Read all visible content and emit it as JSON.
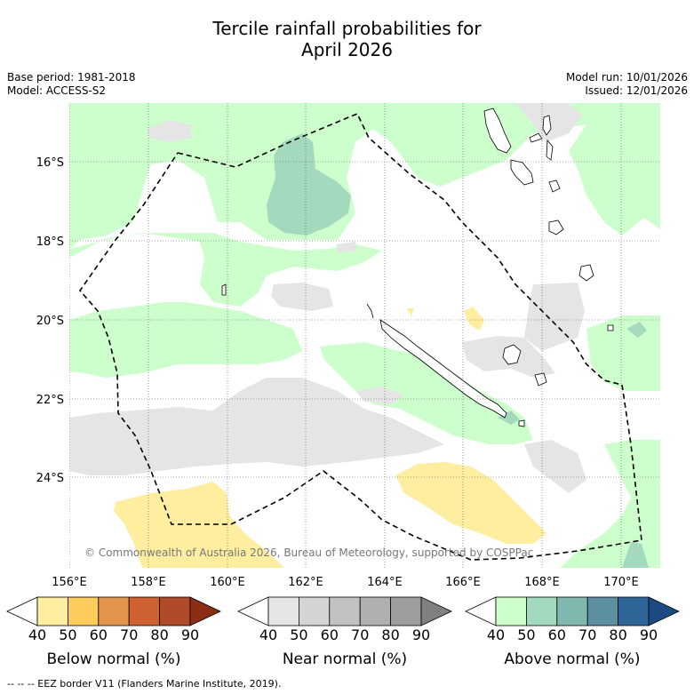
{
  "title_line1": "Tercile rainfall probabilities for",
  "title_line2": "April 2026",
  "base_period": "Base period: 1981-2018",
  "model": "Model: ACCESS-S2",
  "model_run": "Model run: 10/01/2026",
  "issued": "Issued: 12/01/2026",
  "copyright": "© Commonwealth of Australia 2026, Bureau of Meteorology, supported by COSPPac",
  "footnote": "--  --  -- EEZ border V11 (Flanders Marine Institute, 2019).",
  "lat_ticks": [
    "16°S",
    "18°S",
    "20°S",
    "22°S",
    "24°S"
  ],
  "lon_ticks": [
    "156°E",
    "158°E",
    "160°E",
    "162°E",
    "164°E",
    "166°E",
    "168°E",
    "170°E"
  ],
  "colorbars": [
    {
      "title": "Below normal (%)",
      "labels": [
        "40",
        "50",
        "60",
        "70",
        "80",
        "90"
      ],
      "colors": [
        "#ffffff",
        "#ffeda0",
        "#fecc5c",
        "#e3944b",
        "#cf6231",
        "#b04a28",
        "#8c2d14"
      ]
    },
    {
      "title": "Near normal (%)",
      "labels": [
        "40",
        "50",
        "60",
        "70",
        "80",
        "90"
      ],
      "colors": [
        "#ffffff",
        "#e6e6e6",
        "#d4d4d4",
        "#c2c2c2",
        "#b0b0b0",
        "#9d9d9d",
        "#808080"
      ]
    },
    {
      "title": "Above normal (%)",
      "labels": [
        "40",
        "50",
        "60",
        "70",
        "80",
        "90"
      ],
      "colors": [
        "#ffffff",
        "#ccffcc",
        "#a3d9bd",
        "#80b8b0",
        "#5c90a0",
        "#2f6499",
        "#1a4a80"
      ]
    }
  ],
  "colors": {
    "above50": "#ccffcc",
    "above60": "#a3d9bd",
    "near50": "#e5e5e5",
    "below50": "#ffeda0"
  }
}
